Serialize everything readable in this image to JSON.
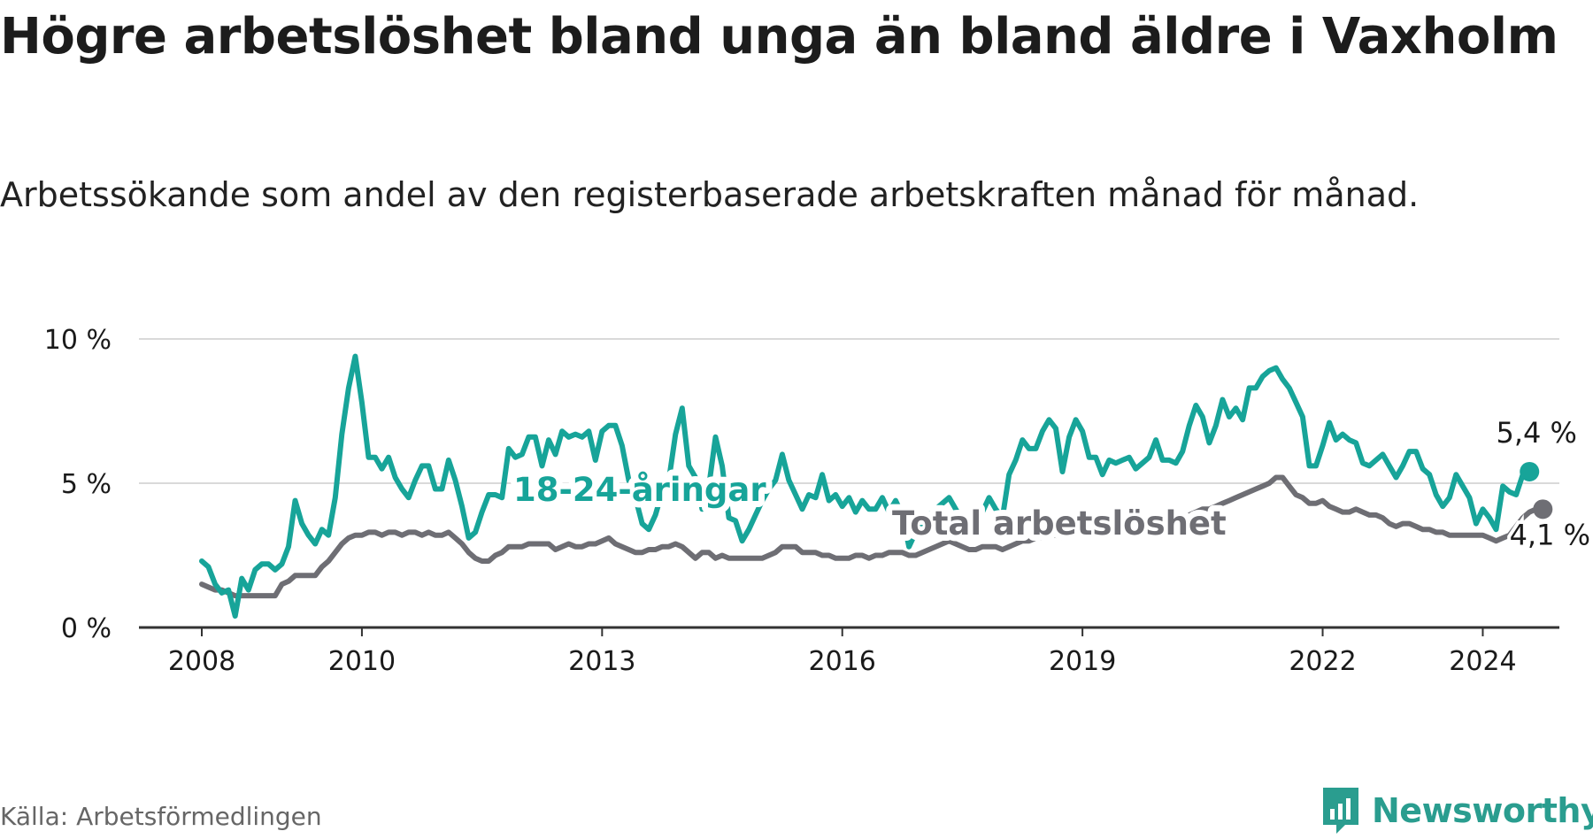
{
  "title": "Högre arbetslöshet bland unga än bland äldre i Vaxholm",
  "subtitle": "Arbetssökande som andel av den registerbaserade arbetskraften månad för månad.",
  "source": "Källa: Arbetsförmedlingen",
  "brand": "Newsworthy",
  "colors": {
    "youth": "#17a499",
    "total": "#6e6e74",
    "grid": "#d9d9d9",
    "axis": "#333333",
    "text": "#1a1a1a"
  },
  "chart_data": {
    "type": "line",
    "x_start": "2008-01",
    "x_end": "2024-02",
    "ylim": [
      0,
      10
    ],
    "yticks": [
      0,
      5,
      10
    ],
    "ytick_labels": [
      "0 %",
      "5 %",
      "10 %"
    ],
    "xticks": [
      2008,
      2010,
      2013,
      2016,
      2019,
      2022,
      2024
    ],
    "xtick_labels": [
      "2008",
      "2010",
      "2013",
      "2016",
      "2019",
      "2022",
      "2024"
    ],
    "grid": true,
    "series": [
      {
        "name": "18-24-åringar",
        "color": "#17a499",
        "last_label": "5,4 %",
        "values": [
          2.3,
          2.1,
          1.5,
          1.2,
          1.3,
          0.4,
          1.7,
          1.3,
          2.0,
          2.2,
          2.2,
          2.0,
          2.2,
          2.8,
          4.4,
          3.6,
          3.2,
          2.9,
          3.4,
          3.2,
          4.5,
          6.7,
          8.3,
          9.4,
          7.8,
          5.9,
          5.9,
          5.5,
          5.9,
          5.2,
          4.8,
          4.5,
          5.1,
          5.6,
          5.6,
          4.8,
          4.8,
          5.8,
          5.1,
          4.2,
          3.1,
          3.3,
          4.0,
          4.6,
          4.6,
          4.5,
          6.2,
          5.9,
          6.0,
          6.6,
          6.6,
          5.6,
          6.5,
          6.0,
          6.8,
          6.6,
          6.7,
          6.6,
          6.8,
          5.8,
          6.8,
          7.0,
          7.0,
          6.3,
          5.1,
          4.5,
          3.6,
          3.4,
          3.9,
          4.7,
          5.1,
          6.7,
          7.6,
          5.6,
          5.2,
          4.1,
          4.9,
          6.6,
          5.6,
          3.8,
          3.7,
          3.0,
          3.4,
          3.9,
          4.4,
          4.8,
          5.1,
          6.0,
          5.1,
          4.6,
          4.1,
          4.6,
          4.5,
          5.3,
          4.4,
          4.6,
          4.2,
          4.5,
          4.0,
          4.4,
          4.1,
          4.1,
          4.5,
          4.0,
          4.4,
          3.9,
          2.8,
          3.3,
          3.6,
          3.9,
          4.1,
          4.3,
          4.5,
          4.1,
          3.7,
          3.4,
          3.7,
          4.0,
          4.5,
          4.1,
          3.8,
          5.3,
          5.8,
          6.5,
          6.2,
          6.2,
          6.8,
          7.2,
          6.9,
          5.4,
          6.6,
          7.2,
          6.8,
          5.9,
          5.9,
          5.3,
          5.8,
          5.7,
          5.8,
          5.9,
          5.5,
          5.7,
          5.9,
          6.5,
          5.8,
          5.8,
          5.7,
          6.1,
          7.0,
          7.7,
          7.3,
          6.4,
          7.0,
          7.9,
          7.3,
          7.6,
          7.2,
          8.3,
          8.3,
          8.7,
          8.9,
          9.0,
          8.6,
          8.3,
          7.8,
          7.3,
          5.6,
          5.6,
          6.3,
          7.1,
          6.5,
          6.7,
          6.5,
          6.4,
          5.7,
          5.6,
          5.8,
          6.0,
          5.6,
          5.2,
          5.6,
          6.1,
          6.1,
          5.5,
          5.3,
          4.6,
          4.2,
          4.5,
          5.3,
          4.9,
          4.5,
          3.6,
          4.1,
          3.8,
          3.4,
          4.9,
          4.7,
          4.6,
          5.3,
          5.4
        ]
      },
      {
        "name": "Total arbetslöshet",
        "color": "#6e6e74",
        "last_label": "4,1 %",
        "values": [
          1.5,
          1.4,
          1.3,
          1.3,
          1.2,
          1.1,
          1.1,
          1.1,
          1.1,
          1.1,
          1.1,
          1.1,
          1.5,
          1.6,
          1.8,
          1.8,
          1.8,
          1.8,
          2.1,
          2.3,
          2.6,
          2.9,
          3.1,
          3.2,
          3.2,
          3.3,
          3.3,
          3.2,
          3.3,
          3.3,
          3.2,
          3.3,
          3.3,
          3.2,
          3.3,
          3.2,
          3.2,
          3.3,
          3.1,
          2.9,
          2.6,
          2.4,
          2.3,
          2.3,
          2.5,
          2.6,
          2.8,
          2.8,
          2.8,
          2.9,
          2.9,
          2.9,
          2.9,
          2.7,
          2.8,
          2.9,
          2.8,
          2.8,
          2.9,
          2.9,
          3.0,
          3.1,
          2.9,
          2.8,
          2.7,
          2.6,
          2.6,
          2.7,
          2.7,
          2.8,
          2.8,
          2.9,
          2.8,
          2.6,
          2.4,
          2.6,
          2.6,
          2.4,
          2.5,
          2.4,
          2.4,
          2.4,
          2.4,
          2.4,
          2.4,
          2.5,
          2.6,
          2.8,
          2.8,
          2.8,
          2.6,
          2.6,
          2.6,
          2.5,
          2.5,
          2.4,
          2.4,
          2.4,
          2.5,
          2.5,
          2.4,
          2.5,
          2.5,
          2.6,
          2.6,
          2.6,
          2.5,
          2.5,
          2.6,
          2.7,
          2.8,
          2.9,
          3.0,
          2.9,
          2.8,
          2.7,
          2.7,
          2.8,
          2.8,
          2.8,
          2.7,
          2.8,
          2.9,
          3.0,
          3.0,
          3.1,
          3.1,
          3.2,
          3.2,
          3.1,
          3.2,
          3.3,
          3.3,
          3.2,
          3.2,
          3.1,
          3.2,
          3.2,
          3.3,
          3.3,
          3.3,
          3.4,
          3.4,
          3.5,
          3.6,
          3.7,
          3.8,
          3.8,
          3.9,
          4.0,
          4.1,
          4.1,
          4.2,
          4.3,
          4.4,
          4.5,
          4.6,
          4.7,
          4.8,
          4.9,
          5.0,
          5.2,
          5.2,
          4.9,
          4.6,
          4.5,
          4.3,
          4.3,
          4.4,
          4.2,
          4.1,
          4.0,
          4.0,
          4.1,
          4.0,
          3.9,
          3.9,
          3.8,
          3.6,
          3.5,
          3.6,
          3.6,
          3.5,
          3.4,
          3.4,
          3.3,
          3.3,
          3.2,
          3.2,
          3.2,
          3.2,
          3.2,
          3.2,
          3.1,
          3.0,
          3.1,
          3.2,
          3.5,
          3.8,
          4.0,
          4.1,
          4.1
        ]
      }
    ]
  }
}
